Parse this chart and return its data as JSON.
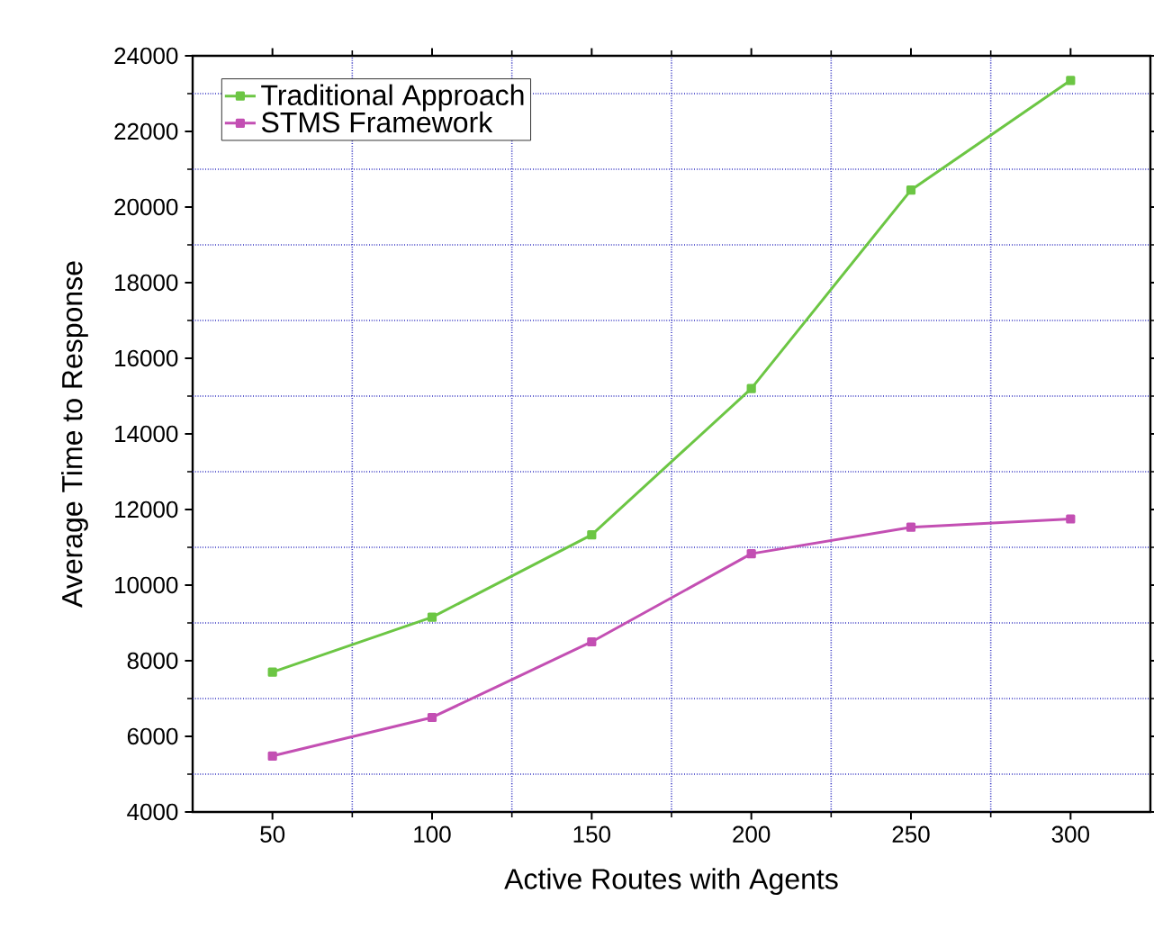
{
  "chart_data": {
    "type": "line",
    "xlabel": "Active Routes with Agents",
    "ylabel": "Average Time to Response",
    "x": [
      50,
      100,
      150,
      200,
      250,
      300
    ],
    "series": [
      {
        "name": "Traditional Approach",
        "color": "#6cc644",
        "values": [
          7700,
          9150,
          11330,
          15200,
          20450,
          23350
        ]
      },
      {
        "name": "STMS Framework",
        "color": "#c34fb3",
        "values": [
          5480,
          6500,
          8500,
          10830,
          11530,
          11750
        ]
      }
    ],
    "xlim": [
      25,
      325
    ],
    "ylim": [
      4000,
      24000
    ],
    "xticks": [
      50,
      {
        "value": 75,
        "label": null
      },
      100,
      {
        "value": 125,
        "label": null
      },
      150,
      {
        "value": 175,
        "label": null
      },
      200,
      {
        "value": 225,
        "label": null
      },
      250,
      {
        "value": 275,
        "label": null
      },
      300
    ],
    "yticks": [
      4000,
      {
        "value": 5000,
        "label": null
      },
      6000,
      {
        "value": 7000,
        "label": null
      },
      8000,
      {
        "value": 9000,
        "label": null
      },
      10000,
      {
        "value": 11000,
        "label": null
      },
      12000,
      {
        "value": 13000,
        "label": null
      },
      14000,
      {
        "value": 15000,
        "label": null
      },
      16000,
      {
        "value": 17000,
        "label": null
      },
      18000,
      {
        "value": 19000,
        "label": null
      },
      20000,
      {
        "value": 21000,
        "label": null
      },
      22000,
      {
        "value": 23000,
        "label": null
      },
      24000
    ],
    "grid": true,
    "legend": "top left",
    "marker": "square",
    "line_style": "solid"
  }
}
